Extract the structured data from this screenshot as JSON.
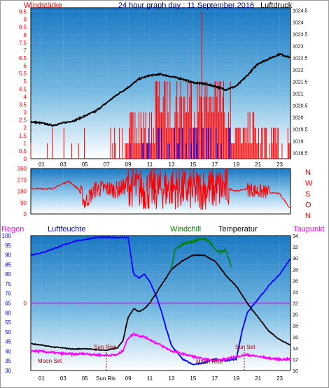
{
  "chart_data": [
    {
      "type": "line",
      "title": "24 hour graph day : 11 September 2016",
      "left_label": "Windstärke",
      "right_label": "Luftdruck",
      "x_ticks": [
        "01",
        "03",
        "05",
        "07",
        "09",
        "11",
        "13",
        "15",
        "17",
        "19",
        "21",
        "23"
      ],
      "wind_ticks": [
        "0",
        "0.5",
        "1",
        "1.5",
        "2",
        "2.5",
        "3",
        "3.5",
        "4",
        "4.5",
        "5",
        "5.5",
        "6",
        "6.5",
        "7",
        "7.5",
        "8",
        "8.5",
        "9",
        "9.5"
      ],
      "pressure_ticks": [
        "1018.5",
        "1019",
        "1019.5",
        "1020",
        "1020.5",
        "1021",
        "1021.5",
        "1022",
        "1022.5",
        "1023",
        "1023.5",
        "1024",
        "1024.5"
      ],
      "wind_ylim": [
        0,
        9.75
      ],
      "pressure_ylim": [
        1018.25,
        1024.6
      ],
      "pressure_series": {
        "name": "Luftdruck",
        "x": [
          0,
          1,
          2,
          3,
          4,
          5,
          6,
          7,
          8,
          9,
          10,
          11,
          12,
          13,
          14,
          15,
          16,
          17,
          18,
          19,
          20,
          21,
          22,
          23,
          24
        ],
        "y": [
          1019.8,
          1019.75,
          1019.65,
          1019.75,
          1019.85,
          1020.05,
          1020.25,
          1020.6,
          1020.95,
          1021.25,
          1021.6,
          1021.75,
          1021.8,
          1021.7,
          1021.6,
          1021.45,
          1021.4,
          1021.3,
          1021.15,
          1021.3,
          1021.75,
          1022.25,
          1022.45,
          1022.65,
          1022.5
        ]
      },
      "wind_series": {
        "name": "Windstärke",
        "note_values": [
          0,
          1,
          2,
          3,
          4,
          5,
          9.5
        ]
      },
      "wind_color": "#ff0000",
      "gust_color": "#0000ff",
      "pressure_color": "#000000"
    },
    {
      "type": "line",
      "right_labels": [
        "N",
        "W",
        "S",
        "O",
        "N"
      ],
      "dir_ticks": [
        "360",
        "270",
        "180",
        "90",
        "0"
      ],
      "dir_ylim": [
        0,
        360
      ],
      "x_ticks": [
        "01",
        "03",
        "05",
        "07",
        "09",
        "11",
        "13",
        "15",
        "17",
        "19",
        "21",
        "23"
      ],
      "series": {
        "name": "Windrichtung",
        "x": [
          0,
          2,
          3.5,
          4.5,
          5,
          6,
          7,
          8,
          9,
          10,
          11,
          12,
          13,
          14,
          15,
          16,
          17,
          18,
          19,
          20,
          21,
          22,
          23,
          24
        ],
        "y": [
          200,
          200,
          260,
          190,
          90,
          200,
          200,
          190,
          230,
          200,
          190,
          200,
          210,
          200,
          190,
          200,
          200,
          210,
          180,
          200,
          180,
          170,
          160,
          40
        ]
      },
      "color": "#ff0000"
    },
    {
      "type": "line",
      "legend": {
        "regen": "Regen",
        "luftfeuchte": "Luftfeuchte",
        "windchill": "Windchill",
        "temperatur": "Temperatur",
        "taupunkt": "Taupunkt"
      },
      "humidity_ticks": [
        "100",
        "95",
        "90",
        "85",
        "80",
        "75",
        "70",
        "65",
        "60",
        "55",
        "50",
        "45",
        "40",
        "35",
        "30"
      ],
      "rain_ticks": [
        "0"
      ],
      "temp_ticks": [
        "34",
        "32",
        "30",
        "28",
        "26",
        "24",
        "22",
        "20",
        "18",
        "16",
        "14",
        "12",
        "10"
      ],
      "humidity_ylim": [
        30,
        100
      ],
      "temp_ylim": [
        10,
        34
      ],
      "x_ticks": [
        "01",
        "03",
        "05",
        "07",
        "09",
        "11",
        "13",
        "15",
        "17",
        "19",
        "21",
        "23"
      ],
      "x_special": [
        "Sun Ris"
      ],
      "annotations": [
        "Sun Rise",
        "Moon Rise",
        "Sun Set",
        "Moon Set"
      ],
      "humidity": {
        "name": "Luftfeuchte",
        "x": [
          0,
          1,
          2,
          3,
          4,
          5,
          6,
          7,
          8,
          9,
          9.5,
          10,
          10.5,
          11,
          11.5,
          12,
          12.5,
          13,
          14,
          15,
          16,
          17,
          18,
          19,
          19.5,
          20,
          21,
          22,
          23,
          24
        ],
        "y": [
          90,
          91,
          93,
          95,
          97,
          98,
          99,
          99,
          99,
          99,
          80,
          78,
          80,
          76,
          70,
          62,
          52,
          43,
          36,
          33,
          34,
          36,
          35,
          36,
          50,
          60,
          67,
          74,
          80,
          88
        ]
      },
      "temperature": {
        "name": "Temperatur",
        "x": [
          0,
          1,
          2,
          3,
          4,
          5,
          6,
          7,
          8,
          8.5,
          9,
          9.5,
          10,
          10.5,
          11,
          12,
          13,
          14,
          15,
          16,
          17,
          18,
          19,
          20,
          21,
          22,
          23,
          24
        ],
        "y": [
          14.8,
          14.5,
          14.2,
          14,
          13.8,
          13.9,
          13.7,
          13.6,
          14,
          15.2,
          19.5,
          21,
          20.5,
          21,
          22,
          25,
          28,
          29.5,
          30.5,
          30.5,
          29.5,
          27,
          25,
          22,
          19.5,
          17,
          15.5,
          14.5
        ]
      },
      "windchill": {
        "name": "Windchill",
        "x": [
          13,
          13.3,
          14,
          15,
          16,
          16.5,
          17,
          17.5,
          18,
          18.5
        ],
        "y": [
          28,
          31.5,
          32.5,
          33,
          33.5,
          33,
          31.5,
          31,
          31.5,
          28.5
        ]
      },
      "dewpoint": {
        "name": "Taupunkt",
        "x": [
          0,
          1,
          2,
          3,
          4,
          5,
          6,
          7,
          8,
          8.5,
          9,
          9.5,
          10,
          10.5,
          11,
          12,
          13,
          14,
          15,
          16,
          17,
          18,
          19,
          20,
          21,
          22,
          23,
          24
        ],
        "y": [
          13.5,
          13.4,
          13.2,
          13,
          12.9,
          13,
          12.8,
          12.7,
          12.8,
          13.5,
          15.8,
          16.5,
          16.2,
          16,
          15.5,
          14.5,
          13.5,
          13,
          12.5,
          12,
          11.8,
          12,
          12.5,
          12.8,
          12.5,
          12.2,
          12,
          12
        ]
      },
      "colors": {
        "regen": "#ff0000",
        "luftfeuchte": "#0000ff",
        "windchill": "#008000",
        "temperatur": "#000000",
        "taupunkt": "#ff00ff"
      }
    }
  ]
}
